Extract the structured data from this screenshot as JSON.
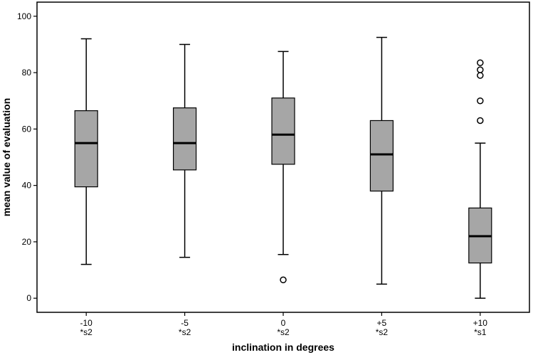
{
  "chart_data": {
    "type": "box",
    "xlabel": "inclination in degrees",
    "ylabel": "mean value of evaluation",
    "ylim": [
      -5,
      105
    ],
    "yticks": [
      0,
      20,
      40,
      60,
      80,
      100
    ],
    "grid": false,
    "box_color": "#a6a6a6",
    "categories": [
      {
        "label": "-10",
        "sublabel": "*s2",
        "whisker_low": 12,
        "q1": 39.5,
        "median": 55,
        "q3": 66.5,
        "whisker_high": 92,
        "outliers": []
      },
      {
        "label": "-5",
        "sublabel": "*s2",
        "whisker_low": 14.5,
        "q1": 45.5,
        "median": 55,
        "q3": 67.5,
        "whisker_high": 90,
        "outliers": []
      },
      {
        "label": "0",
        "sublabel": "*s2",
        "whisker_low": 15.5,
        "q1": 47.5,
        "median": 58,
        "q3": 71,
        "whisker_high": 87.5,
        "outliers": [
          6.5
        ]
      },
      {
        "label": "+5",
        "sublabel": "*s2",
        "whisker_low": 5,
        "q1": 38,
        "median": 51,
        "q3": 63,
        "whisker_high": 92.5,
        "outliers": []
      },
      {
        "label": "+10",
        "sublabel": "*s1",
        "whisker_low": 0,
        "q1": 12.5,
        "median": 22,
        "q3": 32,
        "whisker_high": 55,
        "outliers": [
          63,
          70,
          79,
          81,
          83.5
        ]
      }
    ]
  }
}
